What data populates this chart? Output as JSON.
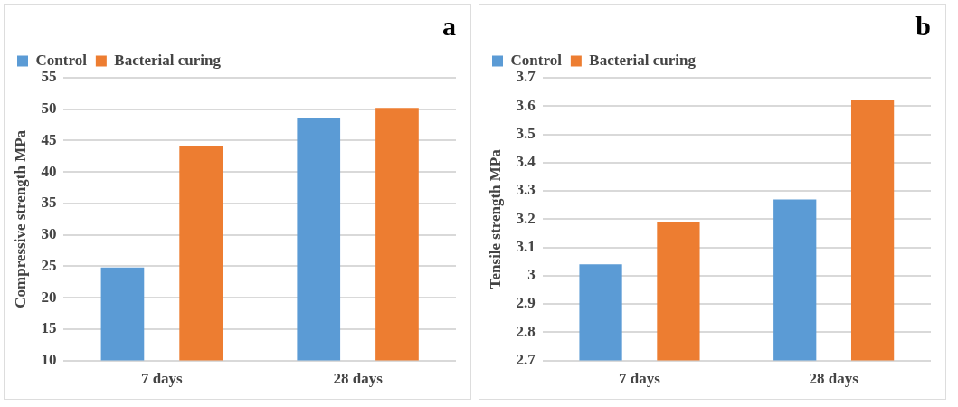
{
  "chart_data": [
    {
      "type": "bar",
      "title": "a",
      "ylabel": "Compressive strength MPa",
      "categories": [
        "7 days",
        "28 days"
      ],
      "series": [
        {
          "name": "Control",
          "color": "#5b9bd5",
          "values": [
            24.8,
            48.6
          ]
        },
        {
          "name": "Bacterial curing",
          "color": "#ed7d31",
          "values": [
            44.2,
            50.2
          ]
        }
      ],
      "ylim": [
        10,
        55
      ],
      "yticks": [
        10,
        15,
        20,
        25,
        30,
        35,
        40,
        45,
        50,
        55
      ],
      "grid": "y",
      "legend": "top left"
    },
    {
      "type": "bar",
      "title": "b",
      "ylabel": "Tensile strength MPa",
      "categories": [
        "7 days",
        "28 days"
      ],
      "series": [
        {
          "name": "Control",
          "color": "#5b9bd5",
          "values": [
            3.04,
            3.27
          ]
        },
        {
          "name": "Bacterial curing",
          "color": "#ed7d31",
          "values": [
            3.19,
            3.62
          ]
        }
      ],
      "ylim": [
        2.7,
        3.7
      ],
      "yticks": [
        2.7,
        2.8,
        2.9,
        3,
        3.1,
        3.2,
        3.3,
        3.4,
        3.5,
        3.6,
        3.7
      ],
      "grid": "y",
      "legend": "top left"
    }
  ]
}
